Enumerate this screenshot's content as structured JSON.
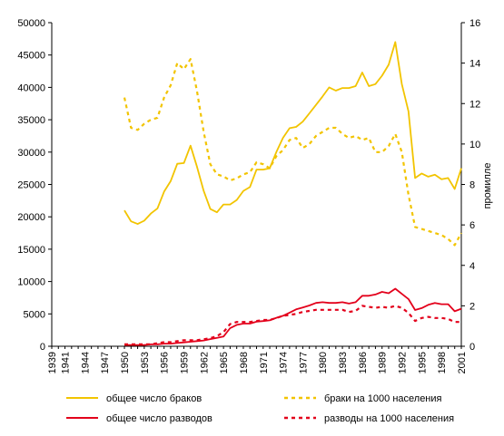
{
  "chart_data": {
    "type": "line",
    "title": "",
    "xlabel": "",
    "ylabel": "",
    "y2label": "промилле",
    "xlim": [
      1939,
      2001
    ],
    "ylim": [
      0,
      50000
    ],
    "y2lim": [
      0,
      16
    ],
    "yticks": [
      0,
      5000,
      10000,
      15000,
      20000,
      25000,
      30000,
      35000,
      40000,
      45000,
      50000
    ],
    "y2ticks": [
      0,
      2,
      4,
      6,
      8,
      10,
      12,
      14,
      16
    ],
    "xticks": [
      1939,
      1941,
      1944,
      1947,
      1950,
      1953,
      1956,
      1959,
      1962,
      1965,
      1968,
      1971,
      1974,
      1977,
      1980,
      1983,
      1986,
      1989,
      1992,
      1995,
      1998,
      2001
    ],
    "grid": false,
    "legend_position": "bottom",
    "series": [
      {
        "name": "общее число браков",
        "axis": "left",
        "color": "#f2c400",
        "dash": "solid",
        "x": [
          1950,
          1951,
          1952,
          1953,
          1954,
          1955,
          1956,
          1957,
          1958,
          1959,
          1960,
          1961,
          1962,
          1963,
          1964,
          1965,
          1966,
          1967,
          1968,
          1969,
          1970,
          1971,
          1972,
          1973,
          1974,
          1975,
          1976,
          1977,
          1978,
          1979,
          1980,
          1981,
          1982,
          1983,
          1984,
          1985,
          1986,
          1987,
          1988,
          1989,
          1990,
          1991,
          1992,
          1993,
          1994,
          1995,
          1996,
          1997,
          1998,
          1999,
          2000,
          2001
        ],
        "y": [
          21000,
          19300,
          18900,
          19400,
          20500,
          21300,
          23900,
          25500,
          28200,
          28300,
          31000,
          27700,
          24000,
          21200,
          20700,
          21900,
          21900,
          22600,
          24000,
          24600,
          27300,
          27300,
          27500,
          30000,
          32200,
          33700,
          33900,
          34700,
          36000,
          37300,
          38600,
          40000,
          39500,
          39900,
          39900,
          40200,
          42300,
          40200,
          40500,
          41800,
          43500,
          47000,
          40500,
          36300,
          26000,
          26700,
          26200,
          26500,
          25800,
          26000,
          24300,
          27500
        ]
      },
      {
        "name": "браки на 1000 населения",
        "axis": "right",
        "color": "#f2c400",
        "dash": "dashed",
        "x": [
          1950,
          1951,
          1952,
          1953,
          1954,
          1955,
          1956,
          1957,
          1958,
          1959,
          1960,
          1961,
          1962,
          1963,
          1964,
          1965,
          1966,
          1967,
          1968,
          1969,
          1970,
          1971,
          1972,
          1973,
          1974,
          1975,
          1976,
          1977,
          1978,
          1979,
          1980,
          1981,
          1982,
          1983,
          1984,
          1985,
          1986,
          1987,
          1988,
          1989,
          1990,
          1991,
          1992,
          1993,
          1994,
          1995,
          1996,
          1997,
          1998,
          1999,
          2000,
          2001
        ],
        "y": [
          12.3,
          10.8,
          10.7,
          11.0,
          11.2,
          11.3,
          12.3,
          12.9,
          14.0,
          13.7,
          14.2,
          12.6,
          10.6,
          9.0,
          8.5,
          8.4,
          8.2,
          8.3,
          8.5,
          8.6,
          9.1,
          9.0,
          8.8,
          9.4,
          9.7,
          10.2,
          10.3,
          9.8,
          10.0,
          10.4,
          10.6,
          10.8,
          10.8,
          10.5,
          10.3,
          10.4,
          10.2,
          10.3,
          9.6,
          9.6,
          9.9,
          10.5,
          9.6,
          7.5,
          5.9,
          5.8,
          5.7,
          5.6,
          5.5,
          5.3,
          5.0,
          5.6
        ]
      },
      {
        "name": "общее число разводов",
        "axis": "left",
        "color": "#e3001b",
        "dash": "solid",
        "x": [
          1950,
          1951,
          1952,
          1953,
          1954,
          1955,
          1956,
          1957,
          1958,
          1959,
          1960,
          1961,
          1962,
          1963,
          1964,
          1965,
          1966,
          1967,
          1968,
          1969,
          1970,
          1971,
          1972,
          1973,
          1974,
          1975,
          1976,
          1977,
          1978,
          1979,
          1980,
          1981,
          1982,
          1983,
          1984,
          1985,
          1986,
          1987,
          1988,
          1989,
          1990,
          1991,
          1992,
          1993,
          1994,
          1995,
          1996,
          1997,
          1998,
          1999,
          2000,
          2001
        ],
        "y": [
          200,
          200,
          200,
          200,
          300,
          300,
          400,
          400,
          500,
          600,
          700,
          800,
          900,
          1100,
          1300,
          1500,
          2800,
          3300,
          3500,
          3500,
          3800,
          3900,
          4000,
          4400,
          4700,
          5200,
          5700,
          6000,
          6300,
          6700,
          6800,
          6700,
          6700,
          6800,
          6600,
          6800,
          7800,
          7800,
          8000,
          8400,
          8200,
          8900,
          8100,
          7300,
          5600,
          5900,
          6400,
          6700,
          6500,
          6500,
          5400,
          5800
        ]
      },
      {
        "name": "разводы на 1000 населения",
        "axis": "right",
        "color": "#e3001b",
        "dash": "dashed",
        "x": [
          1950,
          1951,
          1952,
          1953,
          1954,
          1955,
          1956,
          1957,
          1958,
          1959,
          1960,
          1961,
          1962,
          1963,
          1964,
          1965,
          1966,
          1967,
          1968,
          1969,
          1970,
          1971,
          1972,
          1973,
          1974,
          1975,
          1976,
          1977,
          1978,
          1979,
          1980,
          1981,
          1982,
          1983,
          1984,
          1985,
          1986,
          1987,
          1988,
          1989,
          1990,
          1991,
          1992,
          1993,
          1994,
          1995,
          1996,
          1997,
          1998,
          1999,
          2000,
          2001
        ],
        "y": [
          0.1,
          0.1,
          0.1,
          0.1,
          0.1,
          0.15,
          0.2,
          0.2,
          0.25,
          0.3,
          0.3,
          0.3,
          0.35,
          0.4,
          0.5,
          0.7,
          1.1,
          1.2,
          1.2,
          1.2,
          1.25,
          1.3,
          1.3,
          1.4,
          1.5,
          1.55,
          1.6,
          1.7,
          1.75,
          1.8,
          1.8,
          1.8,
          1.8,
          1.8,
          1.7,
          1.75,
          2.0,
          1.95,
          1.9,
          1.95,
          1.9,
          2.0,
          1.9,
          1.65,
          1.25,
          1.4,
          1.45,
          1.4,
          1.4,
          1.35,
          1.2,
          1.2
        ]
      }
    ]
  }
}
